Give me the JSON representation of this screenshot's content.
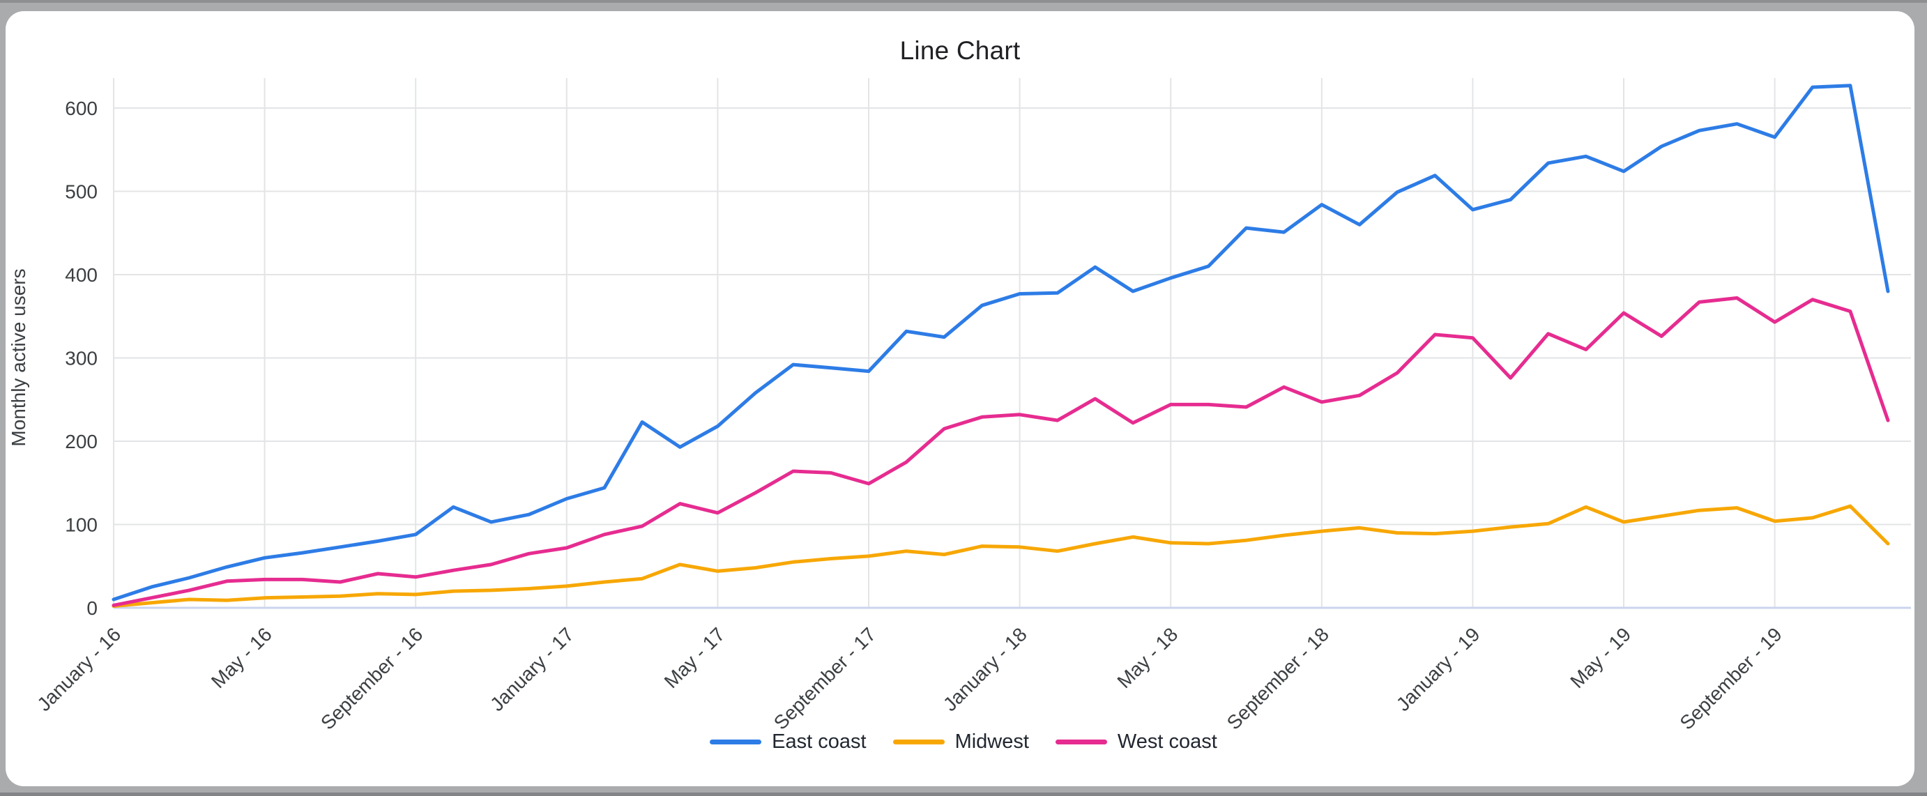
{
  "page": {
    "background_color": "#a9abad",
    "card_color": "#ffffff"
  },
  "chart_data": {
    "type": "line",
    "title": "Line Chart",
    "xlabel": "",
    "ylabel": "Monthly active users",
    "grid": true,
    "legend_position": "bottom",
    "ylim": [
      0,
      650
    ],
    "y_ticks": [
      0,
      100,
      200,
      300,
      400,
      500,
      600
    ],
    "x_tick_labels": [
      "January - 16",
      "May - 16",
      "September - 16",
      "January - 17",
      "May - 17",
      "September - 17",
      "January - 18",
      "May - 18",
      "September - 18",
      "January - 19",
      "May - 19",
      "September - 19"
    ],
    "x_tick_every_n_months": 4,
    "months": [
      "2016-01",
      "2016-02",
      "2016-03",
      "2016-04",
      "2016-05",
      "2016-06",
      "2016-07",
      "2016-08",
      "2016-09",
      "2016-10",
      "2016-11",
      "2016-12",
      "2017-01",
      "2017-02",
      "2017-03",
      "2017-04",
      "2017-05",
      "2017-06",
      "2017-07",
      "2017-08",
      "2017-09",
      "2017-10",
      "2017-11",
      "2017-12",
      "2018-01",
      "2018-02",
      "2018-03",
      "2018-04",
      "2018-05",
      "2018-06",
      "2018-07",
      "2018-08",
      "2018-09",
      "2018-10",
      "2018-11",
      "2018-12",
      "2019-01",
      "2019-02",
      "2019-03",
      "2019-04",
      "2019-05",
      "2019-06",
      "2019-07",
      "2019-08",
      "2019-09",
      "2019-10",
      "2019-11",
      "2019-12"
    ],
    "series": [
      {
        "name": "East coast",
        "color": "#2d7ce6",
        "values": [
          10,
          25,
          36,
          49,
          60,
          66,
          73,
          80,
          88,
          121,
          103,
          112,
          131,
          144,
          223,
          193,
          218,
          258,
          292,
          288,
          284,
          332,
          325,
          363,
          377,
          378,
          409,
          380,
          396,
          410,
          456,
          451,
          484,
          460,
          499,
          519,
          478,
          490,
          534,
          542,
          524,
          554,
          573,
          581,
          565,
          625,
          627,
          380
        ]
      },
      {
        "name": "Midwest",
        "color": "#f7a705",
        "values": [
          2,
          6,
          10,
          9,
          12,
          13,
          14,
          17,
          16,
          20,
          21,
          23,
          26,
          31,
          35,
          52,
          44,
          48,
          55,
          59,
          62,
          68,
          64,
          74,
          73,
          68,
          77,
          85,
          78,
          77,
          81,
          87,
          92,
          96,
          90,
          89,
          92,
          97,
          101,
          121,
          103,
          110,
          117,
          120,
          104,
          108,
          122,
          77
        ]
      },
      {
        "name": "West coast",
        "color": "#e62c90",
        "values": [
          3,
          12,
          21,
          32,
          34,
          34,
          31,
          41,
          37,
          45,
          52,
          65,
          72,
          88,
          98,
          125,
          114,
          138,
          164,
          162,
          149,
          175,
          215,
          229,
          232,
          225,
          251,
          222,
          244,
          244,
          241,
          265,
          247,
          255,
          282,
          328,
          324,
          276,
          329,
          310,
          354,
          326,
          367,
          372,
          343,
          370,
          356,
          225
        ]
      }
    ]
  }
}
